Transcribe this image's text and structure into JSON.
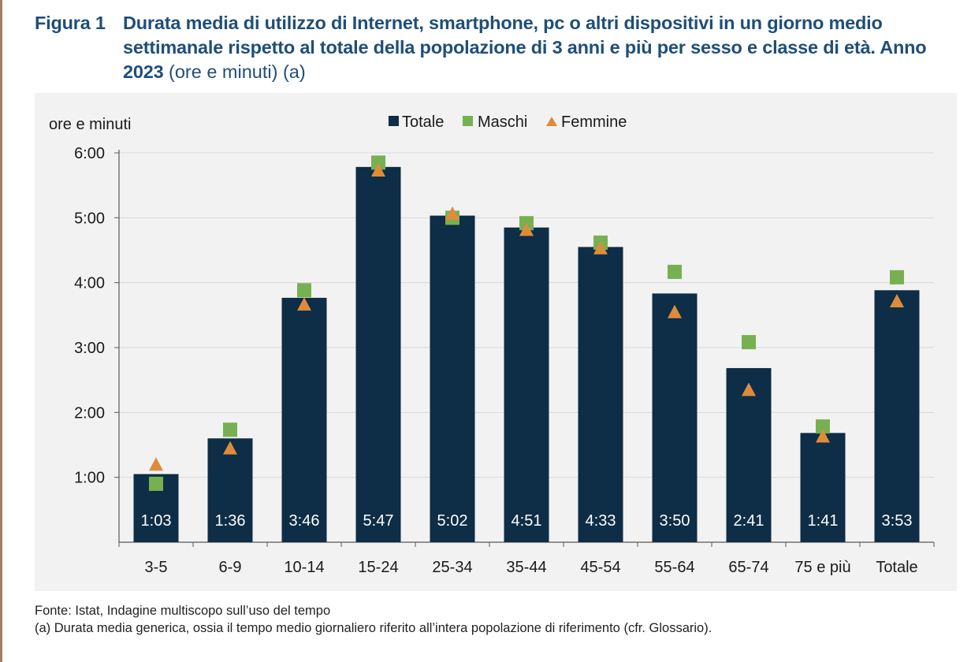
{
  "figure": {
    "label": "Figura 1",
    "title_bold": "Durata media di utilizzo di Internet, smartphone, pc o altri dispositivi in un giorno medio settimanale rispetto al totale della popolazione di 3 anni e più per sesso e classe di età. Anno 2023",
    "title_normal": " (ore e minuti) (a)"
  },
  "colors": {
    "title": "#1f4e79",
    "totale": "#0e2d46",
    "maschi": "#77b051",
    "femmine": "#de8c3c",
    "panel": "#f2f2f2",
    "grid": "#d9d9d9"
  },
  "chart_data": {
    "type": "bar",
    "ylabel": "ore e minuti",
    "ylim_minutes": [
      0,
      360
    ],
    "y_ticks": [
      "1:00",
      "2:00",
      "3:00",
      "4:00",
      "5:00",
      "6:00"
    ],
    "legend_position": "top-center",
    "grid": true,
    "categories": [
      "3-5",
      "6-9",
      "10-14",
      "15-24",
      "25-34",
      "35-44",
      "45-54",
      "55-64",
      "65-74",
      "75 e più",
      "Totale"
    ],
    "series": [
      {
        "name": "Totale",
        "marker": "bar",
        "labels": [
          "1:03",
          "1:36",
          "3:46",
          "5:47",
          "5:02",
          "4:51",
          "4:33",
          "3:50",
          "2:41",
          "1:41",
          "3:53"
        ],
        "values_minutes": [
          63,
          96,
          226,
          347,
          302,
          291,
          273,
          230,
          161,
          101,
          233
        ]
      },
      {
        "name": "Maschi",
        "marker": "square",
        "values_minutes": [
          54,
          104,
          233,
          351,
          300,
          295,
          277,
          250,
          185,
          107,
          245
        ]
      },
      {
        "name": "Femmine",
        "marker": "triangle",
        "values_minutes": [
          72,
          87,
          220,
          344,
          304,
          289,
          272,
          213,
          141,
          98,
          223
        ]
      }
    ]
  },
  "footnotes": {
    "source": "Fonte: Istat, Indagine multiscopo sull’uso del tempo",
    "note_a": "(a) Durata media generica, ossia il tempo medio giornaliero riferito all’intera popolazione di riferimento (cfr. Glossario)."
  }
}
